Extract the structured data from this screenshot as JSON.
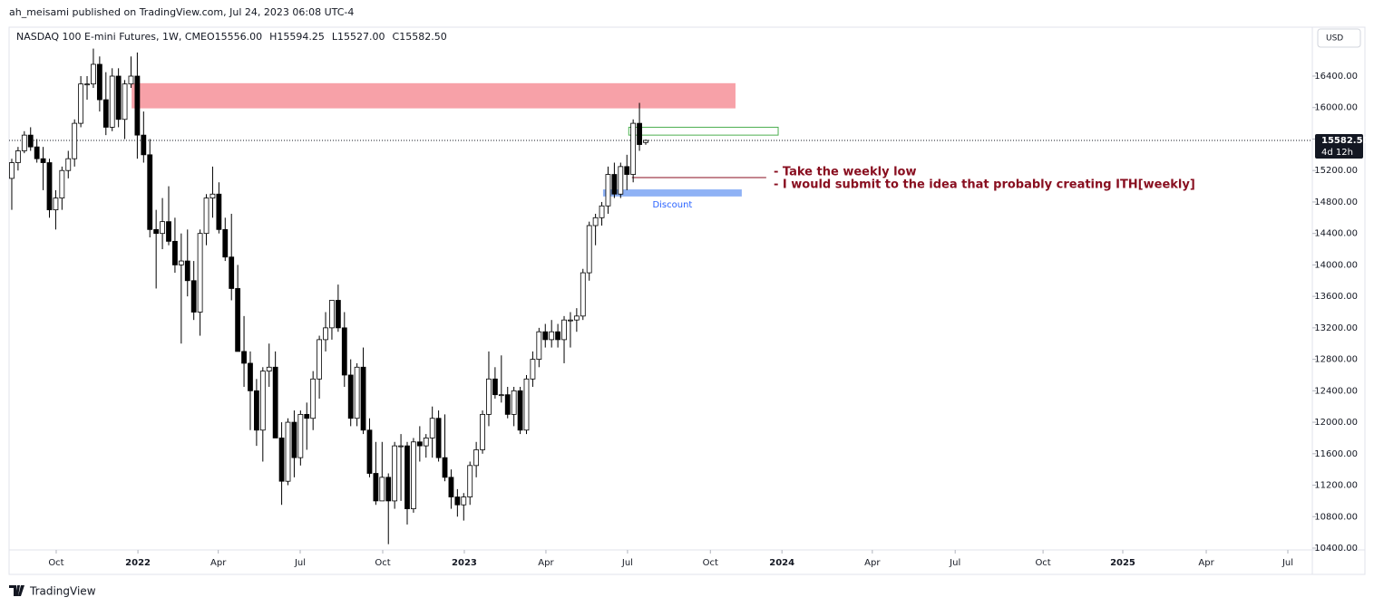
{
  "header": {
    "text": "ah_meisami published on TradingView.com, Jul 24, 2023 06:08 UTC-4"
  },
  "footer": {
    "brand": "TradingView"
  },
  "chart_data": {
    "type": "candlestick",
    "title": "NASDAQ 100 E-mini Futures, 1W, CME",
    "ohlc_labels": [
      "O15556.00",
      "H15594.25",
      "L15527.00",
      "C15582.50"
    ],
    "currency": "USD",
    "up_color": "#ffffff",
    "down_color": "#000000",
    "outline_color": "#000000",
    "series": {
      "open": [
        15100,
        15300,
        15450,
        15650,
        15500,
        15350,
        15300,
        14700,
        14850,
        15200,
        15350,
        15800,
        16300,
        16300,
        16550,
        16100,
        15750,
        16400,
        15850,
        16300,
        16400,
        15650,
        15400,
        14450,
        14400,
        14550,
        14300,
        14000,
        14050,
        13800,
        13400,
        14400,
        14850,
        14900,
        14450,
        14100,
        13700,
        12900,
        12750,
        12400,
        11900,
        12650,
        12700,
        11800,
        11250,
        12000,
        11550,
        12100,
        12050,
        12550,
        13050,
        13200,
        13550,
        13200,
        12600,
        12050,
        12700,
        11900,
        11350,
        11000,
        11300,
        11000,
        11700,
        11700,
        10900,
        11750,
        11700,
        11800,
        12050,
        11550,
        11300,
        11050,
        10950,
        11050,
        11450,
        11650,
        12100,
        12550,
        12350,
        12350,
        12100,
        12400,
        11900,
        12550,
        12800,
        13150,
        13050,
        13150,
        13050,
        13300,
        13300,
        13350,
        13900,
        14500,
        14600,
        14750,
        15150,
        14900,
        15250,
        15150,
        15800,
        15556
      ],
      "high": [
        15350,
        15500,
        15700,
        15750,
        15600,
        15500,
        15350,
        14950,
        15250,
        15450,
        15850,
        16400,
        16400,
        16750,
        16650,
        16450,
        16500,
        16500,
        16350,
        16650,
        16700,
        15950,
        15600,
        14700,
        14850,
        15000,
        14600,
        14400,
        14450,
        14050,
        14450,
        14900,
        15250,
        15050,
        14600,
        14650,
        14000,
        13350,
        12900,
        12550,
        12700,
        13000,
        12900,
        12000,
        12050,
        12150,
        12150,
        12250,
        12650,
        13100,
        13400,
        13550,
        13750,
        13400,
        12800,
        12750,
        12950,
        12050,
        11750,
        11750,
        11350,
        11750,
        11850,
        11750,
        11800,
        11950,
        11850,
        12200,
        12150,
        12100,
        11400,
        11150,
        11100,
        11500,
        11750,
        12150,
        12900,
        12700,
        12850,
        12450,
        12450,
        12450,
        12600,
        12900,
        13200,
        13250,
        13300,
        13250,
        13350,
        13400,
        13450,
        13950,
        14550,
        14650,
        14800,
        15250,
        15300,
        15300,
        15400,
        15850,
        16060,
        15594.25
      ],
      "low": [
        14700,
        15200,
        15420,
        15450,
        15300,
        14950,
        14600,
        14450,
        14700,
        15100,
        15250,
        15750,
        16100,
        16250,
        15950,
        15650,
        15700,
        15750,
        15600,
        16250,
        15350,
        15300,
        14350,
        13700,
        14200,
        14250,
        13900,
        13000,
        13600,
        13300,
        13100,
        14250,
        14600,
        14400,
        14050,
        13550,
        12900,
        12450,
        11900,
        11700,
        11500,
        12450,
        11800,
        10950,
        11200,
        11300,
        11450,
        11650,
        11900,
        12300,
        12900,
        13050,
        13150,
        12450,
        11950,
        11950,
        11850,
        11300,
        10950,
        11000,
        10450,
        10900,
        11000,
        10700,
        10850,
        11500,
        11550,
        11550,
        11500,
        11250,
        10900,
        10800,
        10750,
        10950,
        11300,
        11600,
        11950,
        12300,
        12250,
        12050,
        11950,
        11850,
        11850,
        12450,
        12700,
        12950,
        12950,
        12950,
        12750,
        12950,
        13150,
        13300,
        13800,
        14250,
        14500,
        14650,
        14850,
        14850,
        14950,
        15050,
        15450,
        15527
      ],
      "close": [
        15300,
        15450,
        15650,
        15500,
        15350,
        15300,
        14700,
        14850,
        15200,
        15350,
        15800,
        16300,
        16300,
        16550,
        16100,
        15750,
        16400,
        15850,
        16300,
        16400,
        15650,
        15400,
        14450,
        14400,
        14550,
        14300,
        14000,
        14050,
        13800,
        13400,
        14400,
        14850,
        14900,
        14450,
        14100,
        13700,
        12900,
        12750,
        12400,
        11900,
        12650,
        12700,
        11800,
        11250,
        12000,
        11550,
        12100,
        12050,
        12550,
        13050,
        13200,
        13550,
        13200,
        12600,
        12050,
        12700,
        11900,
        11350,
        11000,
        11300,
        11000,
        11700,
        11700,
        10900,
        11750,
        11700,
        11800,
        12050,
        11550,
        11300,
        11050,
        10950,
        11050,
        11450,
        11650,
        12100,
        12550,
        12350,
        12350,
        12100,
        12400,
        11900,
        12550,
        12800,
        13150,
        13050,
        13150,
        13050,
        13300,
        13300,
        13350,
        13900,
        14500,
        14600,
        14750,
        15150,
        14900,
        15250,
        15150,
        15800,
        15530,
        15582.5
      ]
    },
    "xlim": [
      -0.43,
      207.2
    ],
    "ylim": [
      10377,
      17022
    ],
    "xticks": [
      {
        "value": 7.08,
        "label": "Oct"
      },
      {
        "value": 20.1,
        "label": "2022"
      },
      {
        "value": 32.9,
        "label": "Apr"
      },
      {
        "value": 45.95,
        "label": "Jul"
      },
      {
        "value": 59.1,
        "label": "Oct"
      },
      {
        "value": 72.1,
        "label": "2023"
      },
      {
        "value": 85.1,
        "label": "Apr"
      },
      {
        "value": 98.1,
        "label": "Jul"
      },
      {
        "value": 111.3,
        "label": "Oct"
      },
      {
        "value": 122.7,
        "label": "2024"
      },
      {
        "value": 137.1,
        "label": "Apr"
      },
      {
        "value": 150.3,
        "label": "Jul"
      },
      {
        "value": 164.3,
        "label": "Oct"
      },
      {
        "value": 177.0,
        "label": "2025"
      },
      {
        "value": 190.3,
        "label": "Apr"
      },
      {
        "value": 203.3,
        "label": "Jul"
      }
    ],
    "yticks": [
      {
        "value": 16400,
        "label": "16400.00"
      },
      {
        "value": 16000,
        "label": "16000.00"
      },
      {
        "value": 15600,
        "label": "15600.00"
      },
      {
        "value": 15200,
        "label": "15200.00"
      },
      {
        "value": 14800,
        "label": "14800.00"
      },
      {
        "value": 14400,
        "label": "14400.00"
      },
      {
        "value": 14000,
        "label": "14000.00"
      },
      {
        "value": 13600,
        "label": "13600.00"
      },
      {
        "value": 13200,
        "label": "13200.00"
      },
      {
        "value": 12800,
        "label": "12800.00"
      },
      {
        "value": 12400,
        "label": "12400.00"
      },
      {
        "value": 12000,
        "label": "12000.00"
      },
      {
        "value": 11600,
        "label": "11600.00"
      },
      {
        "value": 11200,
        "label": "11200.00"
      },
      {
        "value": 10800,
        "label": "10800.00"
      },
      {
        "value": 10400,
        "label": "10400.00"
      }
    ],
    "last_price": {
      "value": 15582.5,
      "label": "15582.50"
    },
    "countdown": "4d 12h",
    "zones": [
      {
        "x": [
          19.1,
          115.3
        ],
        "y": [
          15990,
          16310
        ],
        "color": "#f7a1a8",
        "outline": false
      },
      {
        "x": [
          94.2,
          116.3
        ],
        "y": [
          14870,
          14960
        ],
        "color": "#8fb2f5",
        "outline": false,
        "label": "Discount",
        "label_color": "#2962ff"
      },
      {
        "x": [
          98.3,
          122.1
        ],
        "y": [
          15650,
          15750
        ],
        "color": "#4caf50",
        "outline": true
      }
    ],
    "level_line": {
      "x": [
        98.8,
        120.2
      ],
      "y": 15110,
      "color": "#880e1f"
    },
    "annotations": [
      "- Take the weekly low",
      "- I would submit to the idea that probably creating ITH[weekly]"
    ]
  }
}
